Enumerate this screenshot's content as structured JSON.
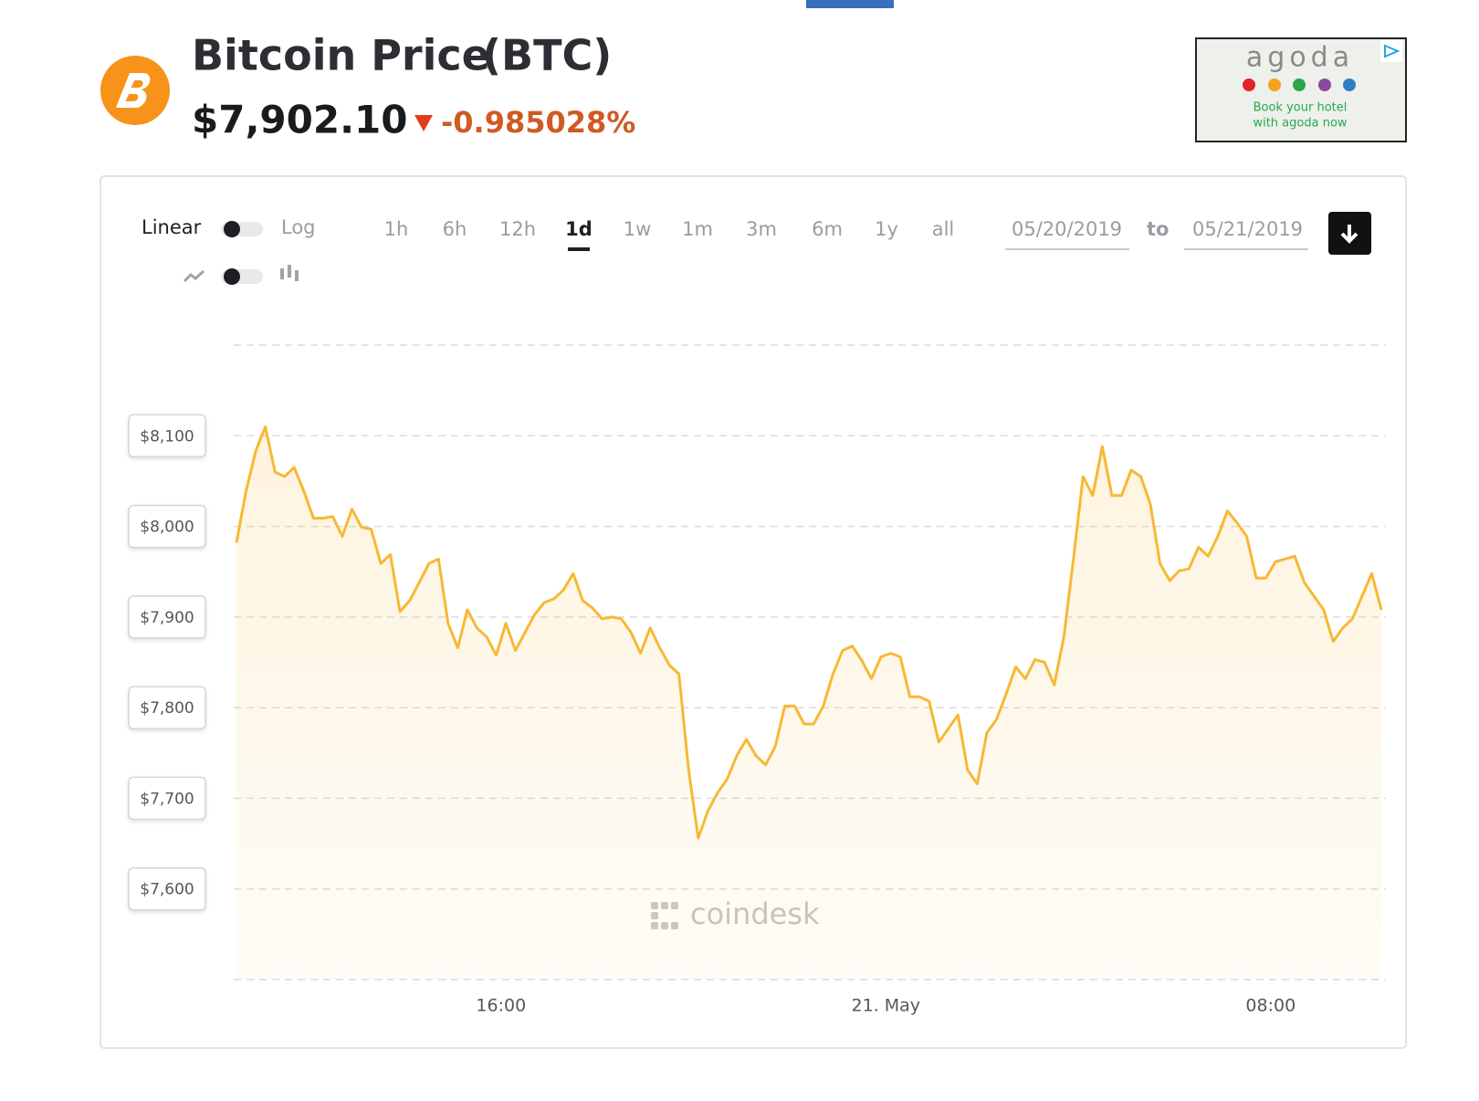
{
  "header": {
    "title": "Bitcoin Price",
    "symbol": "(BTC)",
    "price": "$7,902.10",
    "change": "-0.985028%"
  },
  "controls": {
    "scale_labels": [
      "Linear",
      "Log"
    ],
    "ranges": [
      "1h",
      "6h",
      "12h",
      "1d",
      "1w",
      "1m",
      "3m",
      "6m",
      "1y",
      "all"
    ],
    "active_range": "1d",
    "date_from": "05/20/2019",
    "date_sep": "to",
    "date_to": "05/21/2019"
  },
  "ad": {
    "brand": "agoda",
    "lines": [
      "Book your hotel",
      "with agoda now"
    ]
  },
  "watermark": "coindesk",
  "chart_data": {
    "type": "line",
    "color": "#f8b834",
    "x": [
      10.5,
      10.7,
      10.9,
      11.1,
      11.3,
      11.5,
      11.7,
      11.9,
      12.1,
      12.3,
      12.5,
      12.7,
      12.9,
      13.1,
      13.3,
      13.5,
      13.7,
      13.9,
      14.1,
      14.3,
      14.5,
      14.7,
      14.9,
      15.1,
      15.3,
      15.5,
      15.7,
      15.9,
      16.1,
      16.3,
      16.5,
      16.7,
      16.9,
      17.1,
      17.3,
      17.5,
      17.7,
      17.9,
      18.1,
      18.3,
      18.5,
      18.7,
      18.9,
      19.1,
      19.3,
      19.5,
      19.7,
      19.9,
      20.1,
      20.3,
      20.5,
      20.7,
      20.9,
      21.1,
      21.3,
      21.5,
      21.7,
      21.9,
      22.1,
      22.3,
      22.5,
      22.7,
      22.9,
      23.1,
      23.3,
      23.5,
      23.7,
      23.9,
      24.1,
      24.3,
      24.5,
      24.7,
      24.9,
      25.1,
      25.3,
      25.5,
      25.7,
      25.9,
      26.1,
      26.3,
      26.5,
      26.7,
      26.9,
      27.1,
      27.3,
      27.5,
      27.7,
      27.9,
      28.1,
      28.3,
      28.5,
      28.7,
      28.9,
      29.1,
      29.3,
      29.5,
      29.7,
      29.9,
      30.1,
      30.3,
      30.5,
      30.7,
      30.9,
      31.1,
      31.3,
      31.5,
      31.7,
      31.9,
      32.1,
      32.3,
      32.5,
      32.7,
      32.9,
      33.1,
      33.3,
      33.5,
      33.7,
      33.9,
      34.1,
      34.3
    ],
    "values": [
      7982,
      8039,
      8083,
      8110,
      8060,
      8055,
      8065,
      8039,
      8009,
      8009,
      8011,
      7989,
      8019,
      7999,
      7997,
      7959,
      7969,
      7906,
      7918,
      7938,
      7959,
      7964,
      7893,
      7866,
      7908,
      7888,
      7878,
      7858,
      7893,
      7863,
      7883,
      7903,
      7916,
      7920,
      7930,
      7948,
      7918,
      7910,
      7898,
      7900,
      7898,
      7883,
      7860,
      7888,
      7866,
      7847,
      7837,
      7731,
      7656,
      7686,
      7706,
      7721,
      7747,
      7765,
      7747,
      7737,
      7757,
      7802,
      7802,
      7782,
      7782,
      7802,
      7837,
      7863,
      7868,
      7852,
      7832,
      7856,
      7860,
      7856,
      7812,
      7812,
      7807,
      7762,
      7777,
      7792,
      7731,
      7716,
      7772,
      7787,
      7815,
      7845,
      7832,
      7853,
      7850,
      7825,
      7878,
      7964,
      8055,
      8034,
      8088,
      8034,
      8034,
      8062,
      8055,
      8024,
      7959,
      7940,
      7951,
      7953,
      7977,
      7967,
      7989,
      8017,
      8004,
      7989,
      7943,
      7943,
      7961,
      7964,
      7967,
      7938,
      7923,
      7908,
      7873,
      7888,
      7898,
      7923,
      7948,
      7908
    ],
    "xlim": [
      10.5,
      34.3
    ],
    "xticks": [
      {
        "value": 16,
        "label": "16:00"
      },
      {
        "value": 24,
        "label": "21. May"
      },
      {
        "value": 32,
        "label": "08:00"
      }
    ],
    "ylim": [
      7500,
      8200
    ],
    "yticks": [
      {
        "value": 7600,
        "label": "$7,600"
      },
      {
        "value": 7700,
        "label": "$7,700"
      },
      {
        "value": 7800,
        "label": "$7,800"
      },
      {
        "value": 7900,
        "label": "$7,900"
      },
      {
        "value": 8000,
        "label": "$8,000"
      },
      {
        "value": 8100,
        "label": "$8,100"
      }
    ],
    "grid": true
  }
}
